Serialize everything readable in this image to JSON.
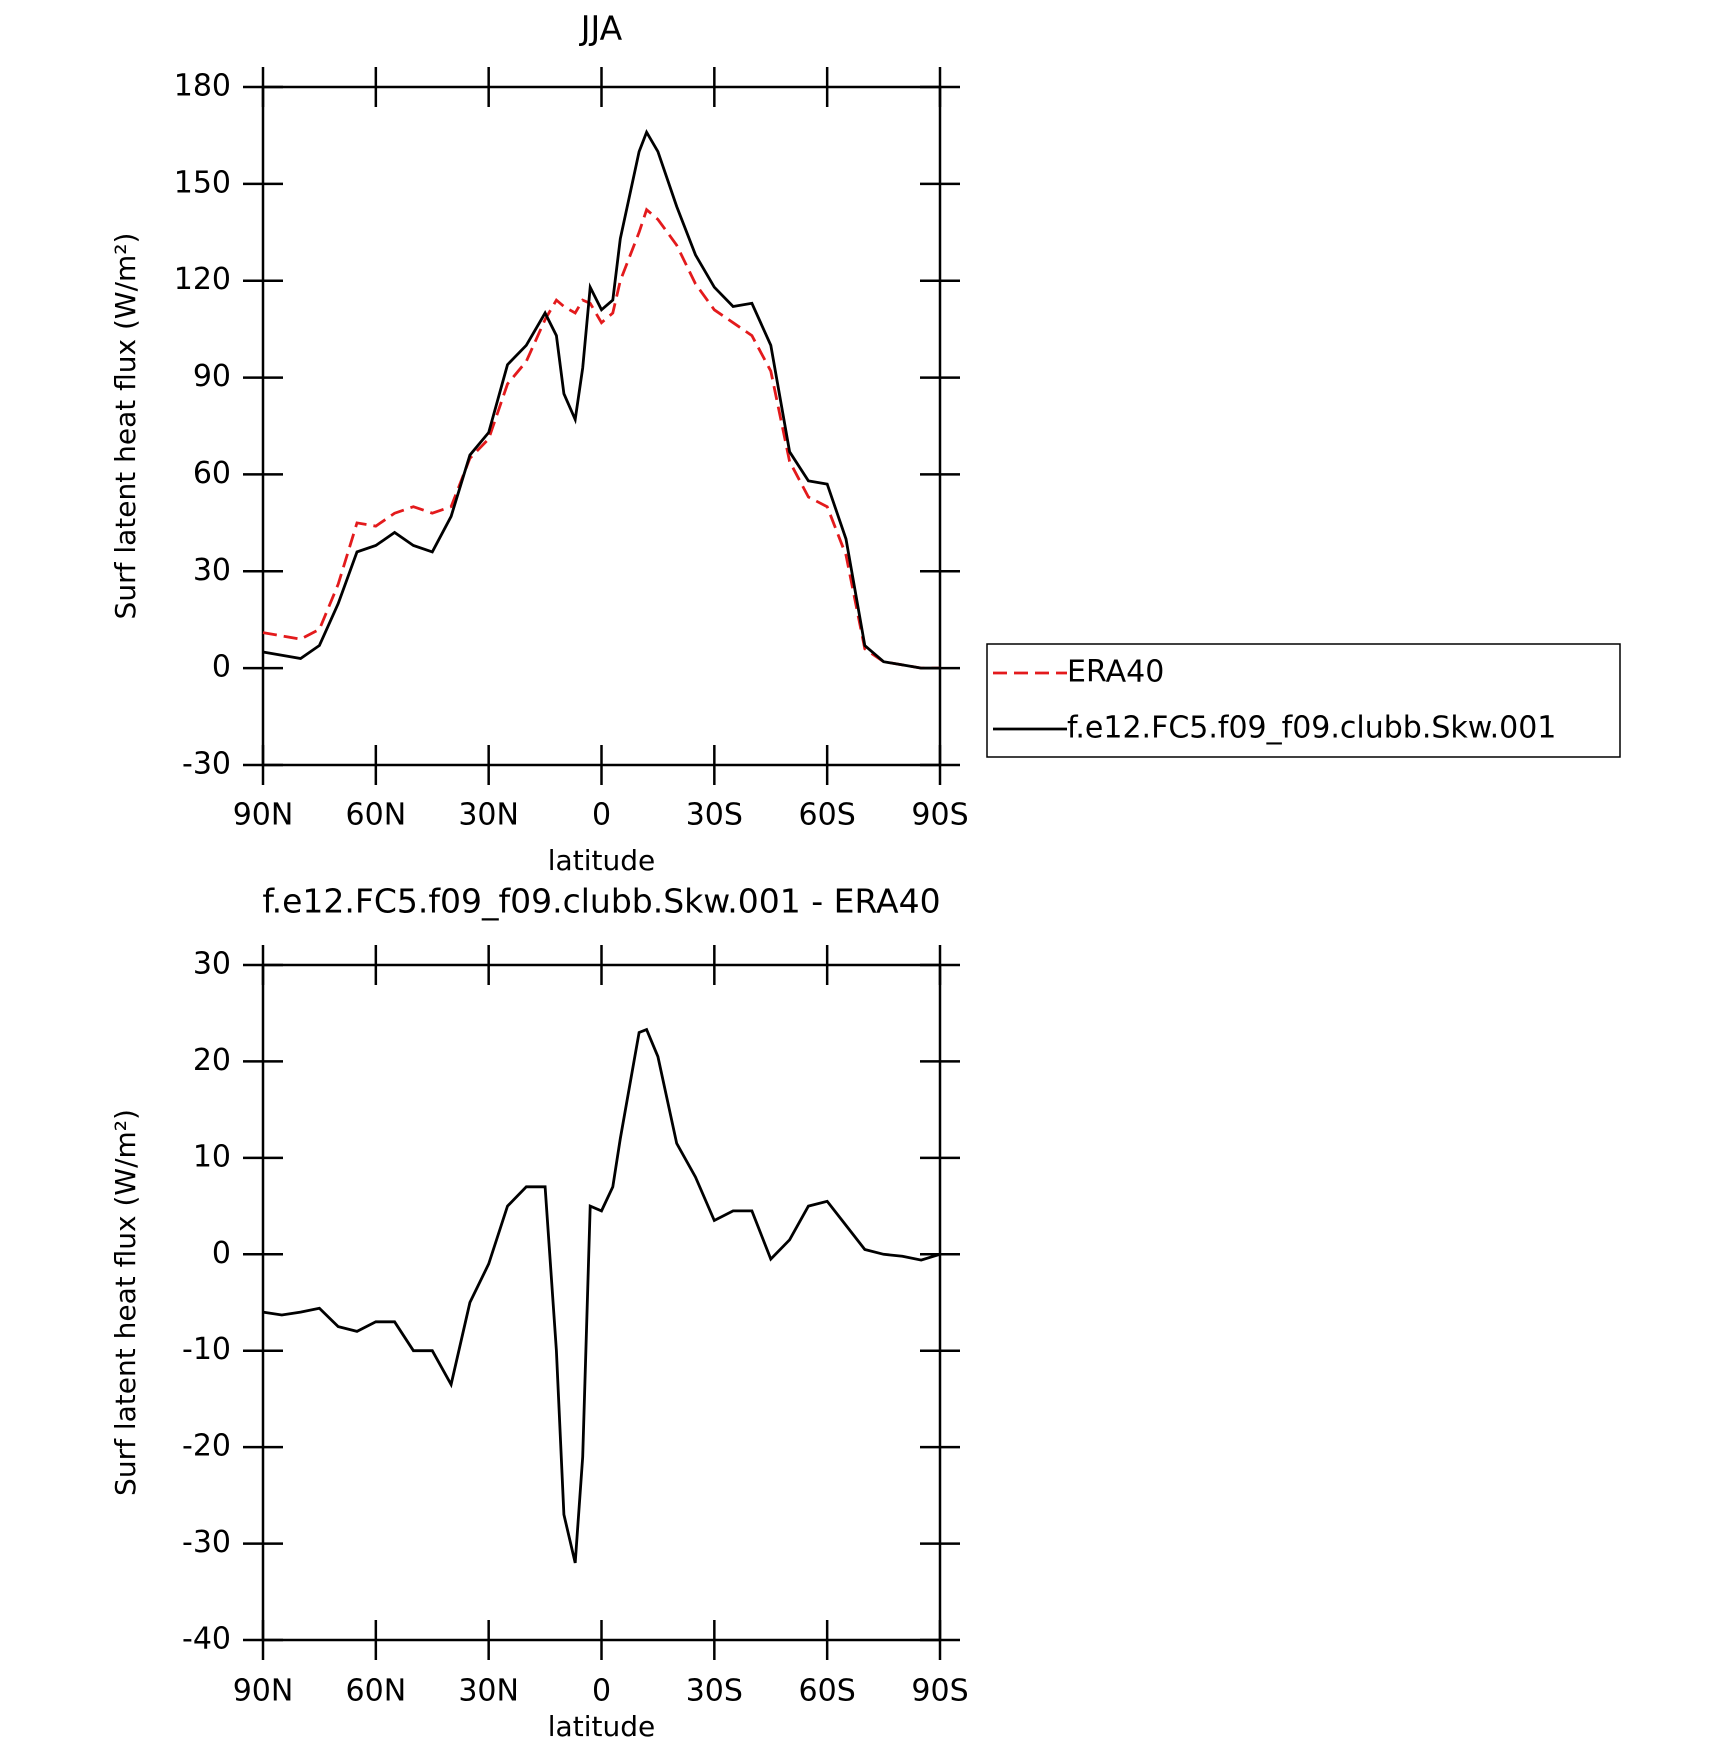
{
  "chart_data": [
    {
      "type": "line",
      "title": "JJA",
      "xlabel": "latitude",
      "ylabel": "Surf latent heat flux (W/m²)",
      "x": [
        90,
        85,
        80,
        75,
        70,
        65,
        60,
        55,
        50,
        45,
        40,
        35,
        30,
        25,
        20,
        15,
        12,
        10,
        7,
        5,
        3,
        0,
        -3,
        -5,
        -10,
        -12,
        -15,
        -20,
        -25,
        -30,
        -35,
        -40,
        -45,
        -50,
        -55,
        -60,
        -65,
        -70,
        -75,
        -80,
        -85,
        -90
      ],
      "series": [
        {
          "name": "ERA40",
          "color": "#e31a1c",
          "style": "dashed",
          "values": [
            11,
            10,
            9,
            12,
            26,
            45,
            44,
            48,
            50,
            48,
            50,
            65,
            71,
            88,
            95,
            108,
            114,
            112,
            110,
            114,
            113,
            107,
            110,
            120,
            135,
            142,
            139,
            131,
            119,
            111,
            107,
            103,
            92,
            64,
            53,
            50,
            35,
            6,
            2,
            1,
            0,
            0
          ]
        },
        {
          "name": "f.e12.FC5.f09_f09.clubb.Skw.001",
          "color": "#000000",
          "style": "solid",
          "values": [
            5,
            4,
            3,
            7,
            20,
            36,
            38,
            42,
            38,
            36,
            47,
            66,
            73,
            94,
            100,
            110,
            103,
            85,
            77,
            93,
            118,
            111,
            114,
            133,
            160,
            166,
            160,
            143,
            128,
            118,
            112,
            113,
            100,
            67,
            58,
            57,
            40,
            7,
            2,
            1,
            0,
            0
          ]
        }
      ],
      "xlim": [
        90,
        -90
      ],
      "xticks": [
        {
          "value": 90,
          "label": "90N"
        },
        {
          "value": 60,
          "label": "60N"
        },
        {
          "value": 30,
          "label": "30N"
        },
        0,
        {
          "value": -30,
          "label": "30S"
        },
        {
          "value": -60,
          "label": "60S"
        },
        {
          "value": -90,
          "label": "90S"
        }
      ],
      "ylim": [
        -30,
        180
      ],
      "yticks": [
        -30,
        0,
        30,
        60,
        90,
        120,
        150,
        180
      ],
      "legend": "right"
    },
    {
      "type": "line",
      "title": "f.e12.FC5.f09_f09.clubb.Skw.001 - ERA40",
      "xlabel": "latitude",
      "ylabel": "Surf latent heat flux (W/m²)",
      "x": [
        90,
        85,
        80,
        75,
        70,
        65,
        60,
        55,
        50,
        45,
        40,
        35,
        30,
        25,
        20,
        15,
        12,
        10,
        7,
        5,
        3,
        0,
        -3,
        -5,
        -10,
        -12,
        -15,
        -20,
        -25,
        -30,
        -35,
        -40,
        -45,
        -50,
        -55,
        -60,
        -65,
        -70,
        -75,
        -80,
        -85,
        -90
      ],
      "series": [
        {
          "color": "#000000",
          "style": "solid",
          "values": [
            -6,
            -6.3,
            -6,
            -5.6,
            -7.5,
            -8,
            -7,
            -7,
            -10,
            -10,
            -13.5,
            -5,
            -1,
            5,
            7,
            7,
            -10,
            -27,
            -32,
            -21,
            5,
            4.5,
            7,
            12,
            23,
            23.3,
            20.5,
            11.5,
            8,
            3.5,
            4.5,
            4.5,
            -0.5,
            1.5,
            5,
            5.5,
            3,
            0.5,
            0,
            -0.2,
            -0.6,
            0
          ]
        }
      ],
      "xlim": [
        90,
        -90
      ],
      "xticks": [
        {
          "value": 90,
          "label": "90N"
        },
        {
          "value": 60,
          "label": "60N"
        },
        {
          "value": 30,
          "label": "30N"
        },
        0,
        {
          "value": -30,
          "label": "30S"
        },
        {
          "value": -60,
          "label": "60S"
        },
        {
          "value": -90,
          "label": "90S"
        }
      ],
      "ylim": [
        -40,
        30
      ],
      "yticks": [
        -40,
        -30,
        -20,
        -10,
        0,
        10,
        20,
        30
      ]
    }
  ]
}
